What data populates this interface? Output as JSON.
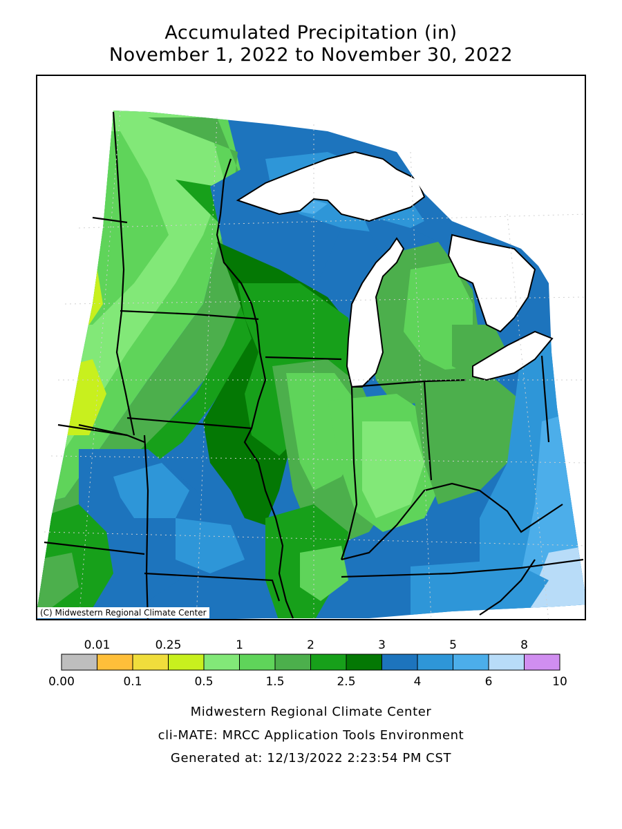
{
  "title": {
    "line1": "Accumulated Precipitation (in)",
    "line2": "November 1, 2022 to November 30, 2022"
  },
  "map": {
    "credit": "(C) Midwestern Regional Climate Center",
    "land_color": "#ffffff",
    "lake_color": "#ffffff"
  },
  "legend": {
    "upper_labels": [
      "0.01",
      "0.25",
      "1",
      "2",
      "3",
      "5",
      "8"
    ],
    "lower_labels": [
      "0.00",
      "0.1",
      "0.5",
      "1.5",
      "2.5",
      "4",
      "6",
      "10"
    ],
    "colors": [
      "#bebebe",
      "#ffbf3a",
      "#f0dd3c",
      "#c8f01e",
      "#82e878",
      "#5fd45a",
      "#4caf4c",
      "#17a01a",
      "#047804",
      "#1d74bd",
      "#2e96d8",
      "#4caeea",
      "#b8dcf8",
      "#d08ef0"
    ]
  },
  "footer": {
    "line1": "Midwestern Regional Climate Center",
    "line2": "cli-MATE: MRCC Application Tools Environment",
    "line3": "Generated at: 12/13/2022 2:23:54 PM CST"
  }
}
